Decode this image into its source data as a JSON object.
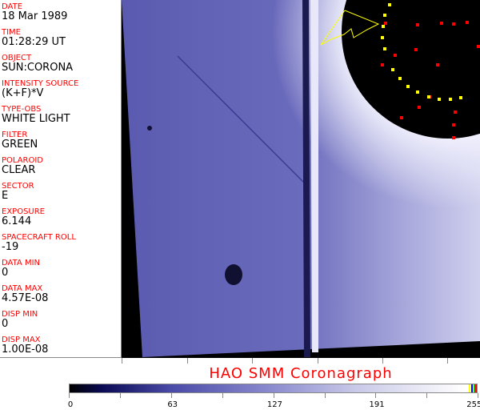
{
  "fields": [
    {
      "label": "DATE",
      "value": "18 Mar 1989"
    },
    {
      "label": "TIME",
      "value": "01:28:29 UT"
    },
    {
      "label": "OBJECT",
      "value": "SUN:CORONA"
    },
    {
      "label": "INTENSITY SOURCE",
      "value": "(K+F)*V"
    },
    {
      "label": "TYPE-OBS",
      "value": "WHITE LIGHT"
    },
    {
      "label": "FILTER",
      "value": "GREEN"
    },
    {
      "label": "POLAROID",
      "value": "CLEAR"
    },
    {
      "label": "SECTOR",
      "value": "E"
    },
    {
      "label": "EXPOSURE",
      "value": "6.144"
    },
    {
      "label": "SPACECRAFT ROLL",
      "value": "-19"
    },
    {
      "label": "DATA MIN",
      "value": "0"
    },
    {
      "label": "DATA MAX",
      "value": "4.57E-08"
    },
    {
      "label": "DISP MIN",
      "value": "0"
    },
    {
      "label": "DISP MAX",
      "value": "1.00E-08"
    }
  ],
  "title": "HAO  SMM Coronagraph",
  "colorbar": {
    "ticks": [
      "0",
      "63",
      "127",
      "191",
      "255"
    ],
    "colormap": "black-blue-white",
    "end_markers": [
      "#ffff00",
      "#0000ff",
      "#00c000",
      "#ff0000"
    ]
  },
  "colors": {
    "label": "#ff0000",
    "overlay_red": "#ff0000",
    "overlay_yellow": "#ffff00"
  }
}
